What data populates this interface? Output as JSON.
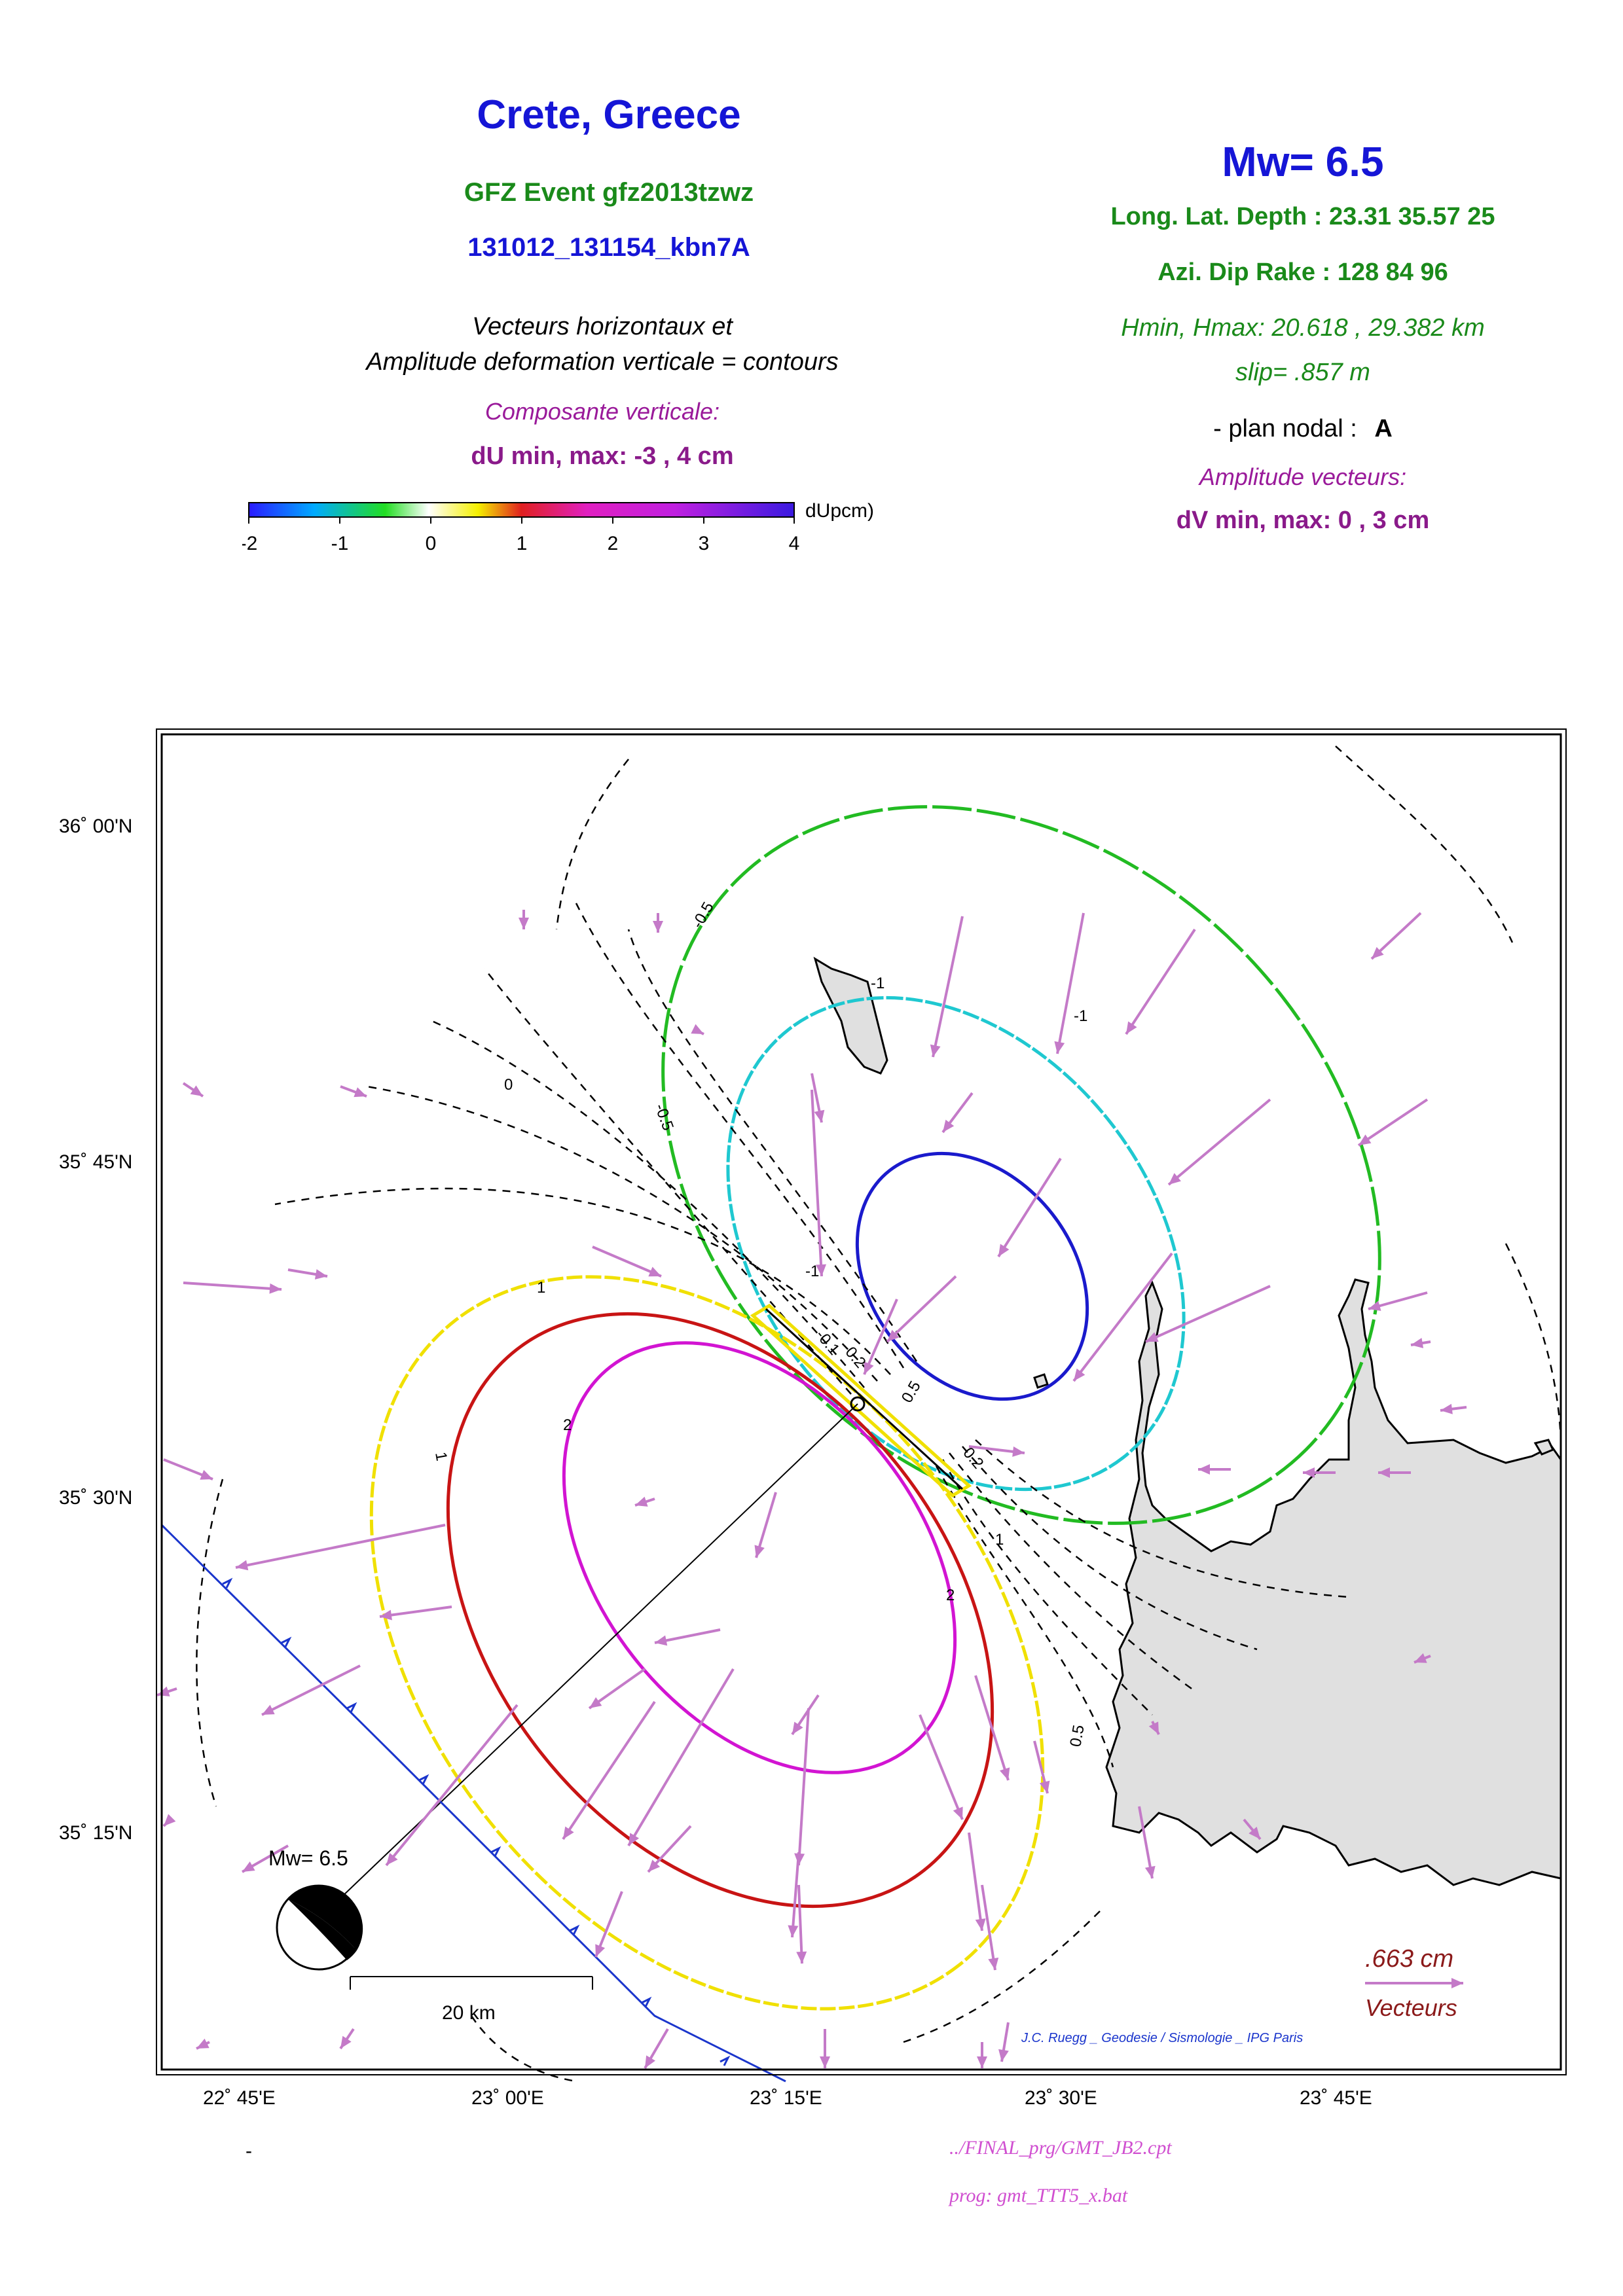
{
  "header": {
    "title": "Crete, Greece",
    "event": "GFZ Event gfz2013tzwz",
    "code": "131012_131154_kbn7A",
    "desc_line1": "Vecteurs horizontaux et",
    "desc_line2": "Amplitude deformation verticale = contours",
    "vertical_label": "Composante verticale:",
    "du_range": "dU min, max:  -3 , 4 cm"
  },
  "colorbar": {
    "unit": "dUpcm)",
    "ticks": [
      "-2",
      "-1",
      "0",
      "1",
      "2",
      "3",
      "4"
    ]
  },
  "source": {
    "mw": "Mw= 6.5",
    "location": "Long. Lat. Depth : 23.31 35.57 25",
    "angles": "Azi.  Dip   Rake :  128 84 96",
    "hrange": "Hmin, Hmax:  20.618 , 29.382 km",
    "slip": "slip= .857 m",
    "plan_label": "- plan nodal :",
    "plan_value": "A",
    "vector_label": "Amplitude vecteurs:",
    "dv_range": "dV min, max:  0 , 3 cm"
  },
  "map": {
    "lat_ticks": [
      "36˚ 00'N",
      "35˚ 45'N",
      "35˚ 30'N",
      "35˚ 15'N"
    ],
    "lon_ticks": [
      "22˚ 45'E",
      "23˚ 00'E",
      "23˚ 15'E",
      "23˚ 30'E",
      "23˚ 45'E"
    ],
    "contour_labels": [
      "-0.5",
      "-1",
      "-1",
      "-0.5",
      "0",
      "-1",
      "1",
      "2",
      "1",
      "2",
      "1",
      "0.5",
      "-0.1",
      "-0.2",
      "0.5",
      "0.2"
    ],
    "mech_label": "Mw= 6.5",
    "scalebar_label": "20 km",
    "vector_scale_value": ".663  cm",
    "vector_scale_label": "Vecteurs",
    "credit": "J.C. Ruegg _ Geodesie / Sismologie _ IPG Paris",
    "colors": {
      "contour_m3": "#1a1acc",
      "contour_m2": "#1fc8d0",
      "contour_m1": "#22bb22",
      "contour_p1": "#f0e000",
      "contour_p2": "#c81414",
      "contour_p3": "#d214d2",
      "vectors": "#c47ac8",
      "land": "#e0e0e0",
      "trench": "#1a35cc"
    }
  },
  "footer": {
    "dash": "-",
    "cpt": "../FINAL_prg/GMT_JB2.cpt",
    "prog": "prog: gmt_TTT5_x.bat"
  }
}
